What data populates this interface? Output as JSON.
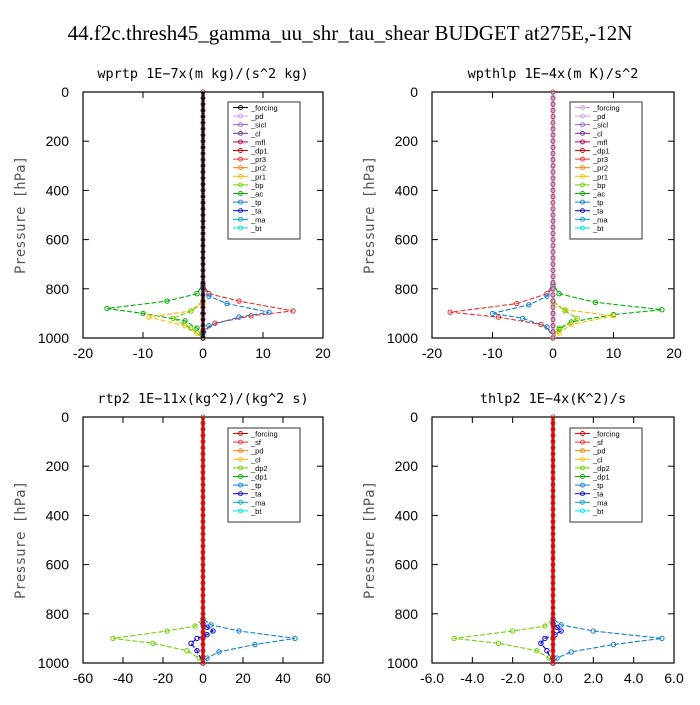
{
  "title": "44.f2c.thresh45_gamma_uu_shr_tau_shear  BUDGET at275E,-12N",
  "chart_data": [
    {
      "type": "line",
      "title": "wprtp  1E−7x(m kg)/(s^2 kg)",
      "ylabel": "Pressure [hPa]",
      "xlim": [
        -20,
        20
      ],
      "ylim": [
        1000,
        0
      ],
      "xticks": [
        "-20",
        "-10",
        "0",
        "10",
        "20"
      ],
      "xtick_values": [
        -20,
        -10,
        0,
        10,
        20
      ],
      "yticks": [
        "0",
        "200",
        "400",
        "600",
        "800",
        "1000"
      ],
      "legend": [
        {
          "name": "_forcing",
          "color": "#000000"
        },
        {
          "name": "_pd",
          "color": "#c8a0e6"
        },
        {
          "name": "_sicl",
          "color": "#9a5fd0"
        },
        {
          "name": "_cl",
          "color": "#6a2a90"
        },
        {
          "name": "_mfl",
          "color": "#b00050"
        },
        {
          "name": "_dp1",
          "color": "#e00000"
        },
        {
          "name": "_pr3",
          "color": "#e83030"
        },
        {
          "name": "_pr2",
          "color": "#f08000"
        },
        {
          "name": "_pr1",
          "color": "#f0c000"
        },
        {
          "name": "_bp",
          "color": "#70d000"
        },
        {
          "name": "_ac",
          "color": "#00b000"
        },
        {
          "name": "_tp",
          "color": "#1080d0"
        },
        {
          "name": "_ta",
          "color": "#0000d0"
        },
        {
          "name": "_ma",
          "color": "#00a0c0"
        },
        {
          "name": "_bt",
          "color": "#00e0e0"
        }
      ],
      "series": [
        {
          "name": "_ac",
          "color": "#00b000",
          "x": [
            0,
            0,
            -1,
            -6,
            -16,
            -10,
            -3,
            -1,
            0
          ],
          "y": [
            0,
            780,
            820,
            850,
            880,
            900,
            930,
            960,
            1000
          ]
        },
        {
          "name": "_pr3",
          "color": "#e83030",
          "x": [
            0,
            0,
            1,
            6,
            15,
            8,
            2,
            0,
            0
          ],
          "y": [
            0,
            780,
            820,
            850,
            890,
            910,
            940,
            970,
            1000
          ]
        },
        {
          "name": "_tp",
          "color": "#1080d0",
          "x": [
            0,
            0,
            1,
            4,
            11,
            6,
            1,
            0
          ],
          "y": [
            0,
            790,
            830,
            860,
            895,
            915,
            950,
            1000
          ]
        },
        {
          "name": "_pr1",
          "color": "#f0c000",
          "x": [
            0,
            0,
            -2,
            -9,
            -3,
            -1,
            0
          ],
          "y": [
            0,
            860,
            890,
            915,
            950,
            980,
            1000
          ]
        },
        {
          "name": "_bp",
          "color": "#70d000",
          "x": [
            0,
            0,
            -2,
            -5,
            -2,
            0
          ],
          "y": [
            0,
            850,
            890,
            920,
            960,
            1000
          ]
        },
        {
          "name": "_forcing",
          "color": "#000000",
          "x": [
            0,
            0,
            0
          ],
          "y": [
            0,
            900,
            1000
          ]
        }
      ]
    },
    {
      "type": "line",
      "title": "wpthlp  1E−4x(m K)/s^2",
      "ylabel": "Pressure [hPa]",
      "xlim": [
        -20,
        20
      ],
      "ylim": [
        1000,
        0
      ],
      "xticks": [
        "-20",
        "-10",
        "0",
        "10",
        "20"
      ],
      "xtick_values": [
        -20,
        -10,
        0,
        10,
        20
      ],
      "yticks": [
        "0",
        "200",
        "400",
        "600",
        "800",
        "1000"
      ],
      "legend": [
        {
          "name": "_forcing",
          "color": "#c8a0e6"
        },
        {
          "name": "_pd",
          "color": "#c8a0e6"
        },
        {
          "name": "_sicl",
          "color": "#9a5fd0"
        },
        {
          "name": "_cl",
          "color": "#6a2a90"
        },
        {
          "name": "_mfl",
          "color": "#b00050"
        },
        {
          "name": "_dp1",
          "color": "#e00000"
        },
        {
          "name": "_pr3",
          "color": "#e83030"
        },
        {
          "name": "_pr2",
          "color": "#f08000"
        },
        {
          "name": "_pr1",
          "color": "#f0c000"
        },
        {
          "name": "_bp",
          "color": "#70d000"
        },
        {
          "name": "_ac",
          "color": "#00b000"
        },
        {
          "name": "_tp",
          "color": "#1080d0"
        },
        {
          "name": "_ta",
          "color": "#0000d0"
        },
        {
          "name": "_ma",
          "color": "#00a0c0"
        },
        {
          "name": "_bt",
          "color": "#00e0e0"
        }
      ],
      "series": [
        {
          "name": "_pr3",
          "color": "#e83030",
          "x": [
            0,
            0,
            -1,
            -6,
            -17,
            -9,
            -2,
            0,
            0
          ],
          "y": [
            0,
            780,
            820,
            860,
            895,
            915,
            945,
            975,
            1000
          ]
        },
        {
          "name": "_ac",
          "color": "#00b000",
          "x": [
            0,
            0,
            1,
            7,
            18,
            10,
            3,
            1,
            0
          ],
          "y": [
            0,
            780,
            820,
            855,
            885,
            905,
            935,
            965,
            1000
          ]
        },
        {
          "name": "_tp",
          "color": "#1080d0",
          "x": [
            0,
            0,
            -1,
            -4,
            -10,
            -5,
            -1,
            0
          ],
          "y": [
            0,
            790,
            830,
            865,
            900,
            920,
            955,
            1000
          ]
        },
        {
          "name": "_pr1",
          "color": "#f0c000",
          "x": [
            0,
            0,
            2,
            10,
            3,
            1,
            0
          ],
          "y": [
            0,
            860,
            885,
            910,
            945,
            980,
            1000
          ]
        },
        {
          "name": "_bp",
          "color": "#70d000",
          "x": [
            0,
            0,
            2,
            4,
            1,
            0
          ],
          "y": [
            0,
            850,
            890,
            920,
            960,
            1000
          ]
        },
        {
          "name": "_forcing",
          "color": "#c8a0e6",
          "x": [
            0,
            0,
            0
          ],
          "y": [
            0,
            900,
            1000
          ]
        }
      ]
    },
    {
      "type": "line",
      "title": "rtp2  1E−11x(kg^2)/(kg^2 s)",
      "ylabel": "Pressure [hPa]",
      "xlim": [
        -60,
        60
      ],
      "ylim": [
        1000,
        0
      ],
      "xticks": [
        "-60",
        "-40",
        "-20",
        "0",
        "20",
        "40",
        "60"
      ],
      "xtick_values": [
        -60,
        -40,
        -20,
        0,
        20,
        40,
        60
      ],
      "yticks": [
        "0",
        "200",
        "400",
        "600",
        "800",
        "1000"
      ],
      "legend": [
        {
          "name": "_forcing",
          "color": "#e00000"
        },
        {
          "name": "_sf",
          "color": "#e83030"
        },
        {
          "name": "_pd",
          "color": "#f08000"
        },
        {
          "name": "_cl",
          "color": "#f0c000"
        },
        {
          "name": "_dp2",
          "color": "#70d000"
        },
        {
          "name": "_dp1",
          "color": "#00b000"
        },
        {
          "name": "_tp",
          "color": "#1080d0"
        },
        {
          "name": "_ta",
          "color": "#0000d0"
        },
        {
          "name": "_ma",
          "color": "#00a0c0"
        },
        {
          "name": "_bt",
          "color": "#00e0e0"
        }
      ],
      "series": [
        {
          "name": "_dp2",
          "color": "#70d000",
          "x": [
            0,
            0,
            -4,
            -18,
            -45,
            -25,
            -8,
            -2,
            0
          ],
          "y": [
            0,
            820,
            850,
            870,
            900,
            920,
            950,
            980,
            1000
          ]
        },
        {
          "name": "_tp",
          "color": "#1080d0",
          "x": [
            0,
            0,
            4,
            18,
            46,
            26,
            8,
            2,
            0
          ],
          "y": [
            0,
            820,
            845,
            870,
            900,
            925,
            955,
            980,
            1000
          ]
        },
        {
          "name": "_ta",
          "color": "#0000d0",
          "x": [
            0,
            0,
            2,
            5,
            2,
            -3,
            -6,
            -3,
            0
          ],
          "y": [
            0,
            840,
            855,
            870,
            885,
            900,
            920,
            950,
            1000
          ]
        },
        {
          "name": "_forcing",
          "color": "#e00000",
          "x": [
            0,
            0,
            0
          ],
          "y": [
            0,
            900,
            1000
          ]
        }
      ]
    },
    {
      "type": "line",
      "title": "thlp2  1E−4x(K^2)/s",
      "ylabel": "Pressure [hPa]",
      "xlim": [
        -6,
        6
      ],
      "ylim": [
        1000,
        0
      ],
      "xticks": [
        "-6.0",
        "-4.0",
        "-2.0",
        "0.0",
        "2.0",
        "4.0",
        "6.0"
      ],
      "xtick_values": [
        -6,
        -4,
        -2,
        0,
        2,
        4,
        6
      ],
      "yticks": [
        "0",
        "200",
        "400",
        "600",
        "800",
        "1000"
      ],
      "legend": [
        {
          "name": "_forcing",
          "color": "#e00000"
        },
        {
          "name": "_sf",
          "color": "#e83030"
        },
        {
          "name": "_pd",
          "color": "#f08000"
        },
        {
          "name": "_cl",
          "color": "#f0c000"
        },
        {
          "name": "_dp2",
          "color": "#70d000"
        },
        {
          "name": "_dp1",
          "color": "#00b000"
        },
        {
          "name": "_tp",
          "color": "#1080d0"
        },
        {
          "name": "_ta",
          "color": "#0000d0"
        },
        {
          "name": "_ma",
          "color": "#00a0c0"
        },
        {
          "name": "_bt",
          "color": "#00e0e0"
        }
      ],
      "series": [
        {
          "name": "_dp2",
          "color": "#70d000",
          "x": [
            0,
            0,
            -0.4,
            -2,
            -4.9,
            -2.7,
            -0.8,
            -0.2,
            0
          ],
          "y": [
            0,
            820,
            850,
            870,
            900,
            920,
            950,
            980,
            1000
          ]
        },
        {
          "name": "_tp",
          "color": "#1080d0",
          "x": [
            0,
            0,
            0.4,
            2,
            5.4,
            3,
            0.9,
            0.2,
            0
          ],
          "y": [
            0,
            820,
            845,
            870,
            900,
            925,
            955,
            980,
            1000
          ]
        },
        {
          "name": "_ta",
          "color": "#0000d0",
          "x": [
            0,
            0,
            0.2,
            0.4,
            0.1,
            -0.4,
            -0.6,
            -0.3,
            0
          ],
          "y": [
            0,
            840,
            855,
            870,
            885,
            900,
            920,
            950,
            1000
          ]
        },
        {
          "name": "_forcing",
          "color": "#e00000",
          "x": [
            0,
            0,
            0
          ],
          "y": [
            0,
            900,
            1000
          ]
        }
      ]
    }
  ]
}
